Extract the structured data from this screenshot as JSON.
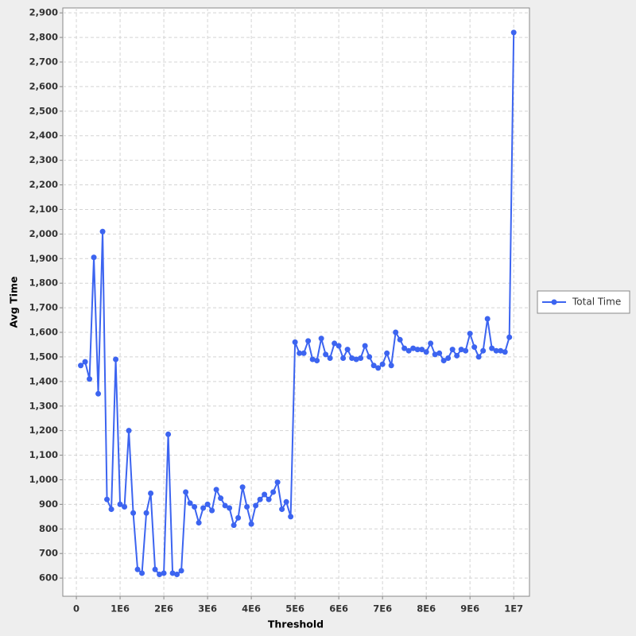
{
  "chart_data": {
    "type": "line",
    "x_label": "Threshold",
    "y_label": "Avg Time",
    "x": [
      100000,
      200000,
      300000,
      400000,
      500000,
      600000,
      700000,
      800000,
      900000,
      1000000,
      1100000,
      1200000,
      1300000,
      1400000,
      1500000,
      1600000,
      1700000,
      1800000,
      1900000,
      2000000,
      2100000,
      2200000,
      2300000,
      2400000,
      2500000,
      2600000,
      2700000,
      2800000,
      2900000,
      3000000,
      3100000,
      3200000,
      3300000,
      3400000,
      3500000,
      3600000,
      3700000,
      3800000,
      3900000,
      4000000,
      4100000,
      4200000,
      4300000,
      4400000,
      4500000,
      4600000,
      4700000,
      4800000,
      4900000,
      5000000,
      5100000,
      5200000,
      5300000,
      5400000,
      5500000,
      5600000,
      5700000,
      5800000,
      5900000,
      6000000,
      6100000,
      6200000,
      6300000,
      6400000,
      6500000,
      6600000,
      6700000,
      6800000,
      6900000,
      7000000,
      7100000,
      7200000,
      7300000,
      7400000,
      7500000,
      7600000,
      7700000,
      7800000,
      7900000,
      8000000,
      8100000,
      8200000,
      8300000,
      8400000,
      8500000,
      8600000,
      8700000,
      8800000,
      8900000,
      9000000,
      9100000,
      9200000,
      9300000,
      9400000,
      9500000,
      9600000,
      9700000,
      9800000,
      9900000,
      10000000
    ],
    "series": [
      {
        "name": "Total Time",
        "color": "#3c64f0",
        "values": [
          1465,
          1480,
          1410,
          1905,
          1350,
          2010,
          920,
          880,
          1490,
          900,
          890,
          1200,
          865,
          635,
          620,
          865,
          945,
          635,
          615,
          620,
          1185,
          620,
          615,
          630,
          950,
          905,
          890,
          825,
          885,
          900,
          875,
          960,
          925,
          895,
          885,
          815,
          845,
          970,
          890,
          820,
          895,
          920,
          940,
          920,
          950,
          990,
          880,
          910,
          850,
          1560,
          1515,
          1515,
          1565,
          1490,
          1485,
          1575,
          1510,
          1495,
          1555,
          1545,
          1495,
          1530,
          1495,
          1490,
          1495,
          1545,
          1500,
          1465,
          1455,
          1470,
          1515,
          1465,
          1600,
          1570,
          1535,
          1525,
          1535,
          1530,
          1530,
          1520,
          1555,
          1510,
          1515,
          1485,
          1495,
          1530,
          1505,
          1530,
          1525,
          1595,
          1540,
          1500,
          1525,
          1655,
          1535,
          1525,
          1525,
          1520,
          1580,
          2820
        ]
      }
    ],
    "xlim": [
      -310000,
      10360000
    ],
    "ylim": [
      526,
      2920
    ],
    "xticks": [
      0,
      {
        "value": 1000000,
        "label": "1E6"
      },
      {
        "value": 2000000,
        "label": "2E6"
      },
      {
        "value": 3000000,
        "label": "3E6"
      },
      {
        "value": 4000000,
        "label": "4E6"
      },
      {
        "value": 5000000,
        "label": "5E6"
      },
      {
        "value": 6000000,
        "label": "6E6"
      },
      {
        "value": 7000000,
        "label": "7E6"
      },
      {
        "value": 8000000,
        "label": "8E6"
      },
      {
        "value": 9000000,
        "label": "9E6"
      },
      {
        "value": 10000000,
        "label": "1E7"
      }
    ],
    "yticks": [
      600,
      700,
      800,
      900,
      {
        "value": 1000,
        "label": "1,000"
      },
      {
        "value": 1100,
        "label": "1,100"
      },
      {
        "value": 1200,
        "label": "1,200"
      },
      {
        "value": 1300,
        "label": "1,300"
      },
      {
        "value": 1400,
        "label": "1,400"
      },
      {
        "value": 1500,
        "label": "1,500"
      },
      {
        "value": 1600,
        "label": "1,600"
      },
      {
        "value": 1700,
        "label": "1,700"
      },
      {
        "value": 1800,
        "label": "1,800"
      },
      {
        "value": 1900,
        "label": "1,900"
      },
      {
        "value": 2000,
        "label": "2,000"
      },
      {
        "value": 2100,
        "label": "2,100"
      },
      {
        "value": 2200,
        "label": "2,200"
      },
      {
        "value": 2300,
        "label": "2,300"
      },
      {
        "value": 2400,
        "label": "2,400"
      },
      {
        "value": 2500,
        "label": "2,500"
      },
      {
        "value": 2600,
        "label": "2,600"
      },
      {
        "value": 2700,
        "label": "2,700"
      },
      {
        "value": 2800,
        "label": "2,800"
      },
      {
        "value": 2900,
        "label": "2,900"
      }
    ],
    "grid": true,
    "legend": "right"
  }
}
